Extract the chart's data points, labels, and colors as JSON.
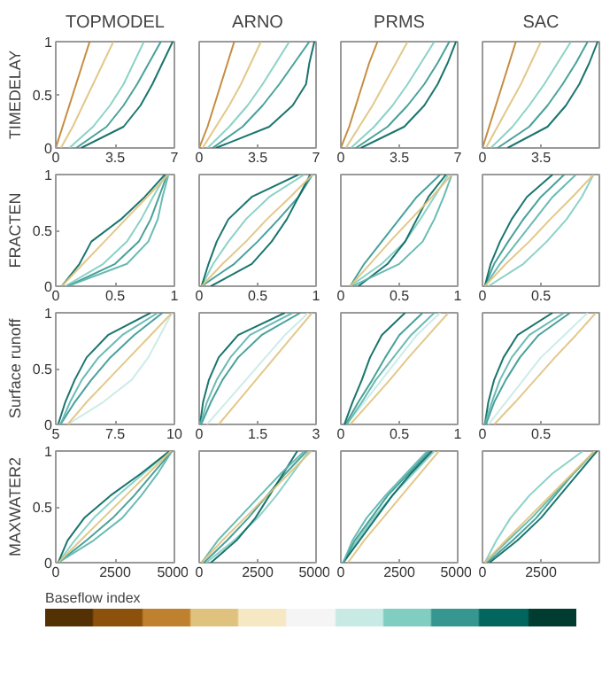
{
  "chart_data": [
    {
      "type": "line",
      "title": "TOPMODEL",
      "ylabel": "TIMEDELAY",
      "clabel": "Baseflow index",
      "xlim": [
        0,
        7
      ],
      "xticks": [
        0,
        3.5,
        7
      ],
      "ylim": [
        0,
        1
      ],
      "yticks": [
        0,
        0.5,
        1
      ],
      "series": [
        {
          "color": "#01665e",
          "x": [
            1.5,
            4.0,
            5.0,
            5.7,
            6.3,
            6.9
          ],
          "values": [
            0,
            0.2,
            0.4,
            0.6,
            0.8,
            1
          ]
        },
        {
          "color": "#35978f",
          "x": [
            1.2,
            3.0,
            4.0,
            4.8,
            5.5,
            6.2
          ],
          "values": [
            0,
            0.2,
            0.4,
            0.6,
            0.8,
            1
          ]
        },
        {
          "color": "#80cdc1",
          "x": [
            0.8,
            2.2,
            3.2,
            4.0,
            4.6,
            5.2
          ],
          "values": [
            0,
            0.2,
            0.4,
            0.6,
            0.8,
            1
          ]
        },
        {
          "color": "#dfc27d",
          "x": [
            0.3,
            1.0,
            1.6,
            2.2,
            2.8,
            3.4
          ],
          "values": [
            0,
            0.2,
            0.4,
            0.6,
            0.8,
            1
          ]
        },
        {
          "color": "#bf812d",
          "x": [
            0,
            0.4,
            0.8,
            1.2,
            1.6,
            2.0
          ],
          "values": [
            0,
            0.2,
            0.4,
            0.6,
            0.8,
            1
          ]
        }
      ]
    },
    {
      "type": "line",
      "title": "ARNO",
      "tick_labels": "x",
      "xlim": [
        0,
        7
      ],
      "xticks": [
        0,
        3.5,
        7
      ],
      "ylim": [
        0,
        1
      ],
      "yticks": [
        0,
        0.5,
        1
      ],
      "series": [
        {
          "color": "#01665e",
          "x": [
            1.0,
            4.2,
            5.6,
            6.4,
            6.6,
            6.9
          ],
          "values": [
            0,
            0.2,
            0.4,
            0.6,
            0.8,
            1
          ]
        },
        {
          "color": "#35978f",
          "x": [
            0.8,
            2.6,
            3.8,
            4.8,
            5.7,
            6.6
          ],
          "values": [
            0,
            0.2,
            0.4,
            0.6,
            0.8,
            1
          ]
        },
        {
          "color": "#80cdc1",
          "x": [
            0.5,
            1.8,
            2.9,
            3.8,
            4.6,
            5.4
          ],
          "values": [
            0,
            0.2,
            0.4,
            0.6,
            0.8,
            1
          ]
        },
        {
          "color": "#dfc27d",
          "x": [
            0.2,
            1.0,
            1.8,
            2.5,
            3.1,
            3.7
          ],
          "values": [
            0,
            0.2,
            0.4,
            0.6,
            0.8,
            1
          ]
        },
        {
          "color": "#bf812d",
          "x": [
            0,
            0.5,
            0.9,
            1.3,
            1.7,
            2.1
          ],
          "values": [
            0,
            0.2,
            0.4,
            0.6,
            0.8,
            1
          ]
        }
      ]
    },
    {
      "type": "line",
      "title": "PRMS",
      "tick_labels": "x",
      "xlim": [
        0,
        7
      ],
      "xticks": [
        0,
        3.5,
        7
      ],
      "ylim": [
        0,
        1
      ],
      "yticks": [
        0,
        0.5,
        1
      ],
      "series": [
        {
          "color": "#01665e",
          "x": [
            1.2,
            3.8,
            5.0,
            5.8,
            6.4,
            6.9
          ],
          "values": [
            0,
            0.2,
            0.4,
            0.6,
            0.8,
            1
          ]
        },
        {
          "color": "#35978f",
          "x": [
            0.9,
            2.8,
            4.0,
            5.0,
            5.8,
            6.5
          ],
          "values": [
            0,
            0.2,
            0.4,
            0.6,
            0.8,
            1
          ]
        },
        {
          "color": "#80cdc1",
          "x": [
            0.6,
            2.0,
            3.1,
            4.0,
            4.8,
            5.6
          ],
          "values": [
            0,
            0.2,
            0.4,
            0.6,
            0.8,
            1
          ]
        },
        {
          "color": "#dfc27d",
          "x": [
            0.3,
            1.1,
            1.9,
            2.6,
            3.3,
            4.0
          ],
          "values": [
            0,
            0.2,
            0.4,
            0.6,
            0.8,
            1
          ]
        },
        {
          "color": "#bf812d",
          "x": [
            0,
            0.5,
            0.9,
            1.3,
            1.7,
            2.2
          ],
          "values": [
            0,
            0.2,
            0.4,
            0.6,
            0.8,
            1
          ]
        }
      ]
    },
    {
      "type": "line",
      "title": "SAC",
      "tick_labels": "x",
      "xlim": [
        0,
        7
      ],
      "xticks": [
        0,
        3.5
      ],
      "ylim": [
        0,
        1
      ],
      "yticks": [
        0,
        0.5,
        1
      ],
      "series": [
        {
          "color": "#01665e",
          "x": [
            1.5,
            3.9,
            5.0,
            5.8,
            6.4,
            6.9
          ],
          "values": [
            0,
            0.2,
            0.4,
            0.6,
            0.8,
            1
          ]
        },
        {
          "color": "#35978f",
          "x": [
            0.9,
            2.8,
            3.9,
            4.8,
            5.6,
            6.3
          ],
          "values": [
            0,
            0.2,
            0.4,
            0.6,
            0.8,
            1
          ]
        },
        {
          "color": "#80cdc1",
          "x": [
            0.5,
            1.8,
            2.8,
            3.7,
            4.5,
            5.3
          ],
          "values": [
            0,
            0.2,
            0.4,
            0.6,
            0.8,
            1
          ]
        },
        {
          "color": "#dfc27d",
          "x": [
            0.2,
            0.9,
            1.6,
            2.3,
            2.9,
            3.5
          ],
          "values": [
            0,
            0.2,
            0.4,
            0.6,
            0.8,
            1
          ]
        },
        {
          "color": "#bf812d",
          "x": [
            0,
            0.4,
            0.8,
            1.2,
            1.6,
            2.0
          ],
          "values": [
            0,
            0.2,
            0.4,
            0.6,
            0.8,
            1
          ]
        }
      ]
    },
    {
      "type": "line",
      "ylabel": "FRACTEN",
      "xlim": [
        0,
        1
      ],
      "xticks": [
        0,
        0.5,
        1
      ],
      "ylim": [
        0,
        1
      ],
      "yticks": [
        0,
        0.5,
        1
      ],
      "series": [
        {
          "color": "#80cdc1",
          "x": [
            0.08,
            0.4,
            0.6,
            0.72,
            0.82,
            0.93
          ],
          "values": [
            0,
            0.2,
            0.4,
            0.6,
            0.8,
            1
          ]
        },
        {
          "color": "#35978f",
          "x": [
            0.1,
            0.5,
            0.7,
            0.8,
            0.87,
            0.94
          ],
          "values": [
            0,
            0.2,
            0.4,
            0.6,
            0.8,
            1
          ]
        },
        {
          "color": "#01665e",
          "x": [
            0.05,
            0.2,
            0.3,
            0.55,
            0.75,
            0.92
          ],
          "values": [
            0,
            0.2,
            0.4,
            0.6,
            0.8,
            1
          ]
        },
        {
          "color": "#5ab4ac",
          "x": [
            0.1,
            0.6,
            0.78,
            0.86,
            0.9,
            0.95
          ],
          "values": [
            0,
            0.2,
            0.4,
            0.6,
            0.8,
            1
          ]
        },
        {
          "color": "#dfc27d",
          "x": [
            0.05,
            0.23,
            0.41,
            0.59,
            0.77,
            0.95
          ],
          "values": [
            0,
            0.2,
            0.4,
            0.6,
            0.8,
            1
          ]
        }
      ]
    },
    {
      "type": "line",
      "tick_labels": "x",
      "xlim": [
        0,
        1
      ],
      "xticks": [
        0,
        0.5,
        1
      ],
      "ylim": [
        0,
        1
      ],
      "yticks": [
        0,
        0.5,
        1
      ],
      "series": [
        {
          "color": "#80cdc1",
          "x": [
            0.02,
            0.12,
            0.25,
            0.4,
            0.6,
            0.9
          ],
          "values": [
            0,
            0.2,
            0.4,
            0.6,
            0.8,
            1
          ]
        },
        {
          "color": "#35978f",
          "x": [
            0.02,
            0.3,
            0.5,
            0.68,
            0.85,
            0.97
          ],
          "values": [
            0,
            0.2,
            0.4,
            0.6,
            0.8,
            1
          ]
        },
        {
          "color": "#01665e",
          "x": [
            0.1,
            0.45,
            0.62,
            0.75,
            0.85,
            0.95
          ],
          "values": [
            0,
            0.2,
            0.4,
            0.6,
            0.8,
            1
          ]
        },
        {
          "color": "#01665e",
          "x": [
            0.02,
            0.08,
            0.15,
            0.25,
            0.45,
            0.85
          ],
          "values": [
            0,
            0.2,
            0.4,
            0.6,
            0.8,
            1
          ]
        },
        {
          "color": "#dfc27d",
          "x": [
            0.02,
            0.2,
            0.4,
            0.58,
            0.78,
            0.97
          ],
          "values": [
            0,
            0.2,
            0.4,
            0.6,
            0.8,
            1
          ]
        }
      ]
    },
    {
      "type": "line",
      "tick_labels": "x",
      "xlim": [
        0,
        1
      ],
      "xticks": [
        0,
        0.5,
        1
      ],
      "ylim": [
        0,
        1
      ],
      "yticks": [
        0,
        0.5,
        1
      ],
      "series": [
        {
          "color": "#80cdc1",
          "x": [
            0.08,
            0.35,
            0.55,
            0.68,
            0.8,
            0.92
          ],
          "values": [
            0,
            0.2,
            0.4,
            0.6,
            0.8,
            1
          ]
        },
        {
          "color": "#35978f",
          "x": [
            0.08,
            0.2,
            0.35,
            0.5,
            0.65,
            0.85
          ],
          "values": [
            0,
            0.2,
            0.4,
            0.6,
            0.8,
            1
          ]
        },
        {
          "color": "#01665e",
          "x": [
            0.15,
            0.4,
            0.55,
            0.65,
            0.75,
            0.9
          ],
          "values": [
            0,
            0.2,
            0.4,
            0.6,
            0.8,
            1
          ]
        },
        {
          "color": "#5ab4ac",
          "x": [
            0.1,
            0.5,
            0.7,
            0.8,
            0.88,
            0.95
          ],
          "values": [
            0,
            0.2,
            0.4,
            0.6,
            0.8,
            1
          ]
        },
        {
          "color": "#dfc27d",
          "x": [
            0.08,
            0.25,
            0.42,
            0.6,
            0.78,
            0.95
          ],
          "values": [
            0,
            0.2,
            0.4,
            0.6,
            0.8,
            1
          ]
        }
      ]
    },
    {
      "type": "line",
      "tick_labels": "x",
      "xlim": [
        0,
        1
      ],
      "xticks": [
        0,
        0.5
      ],
      "ylim": [
        0,
        1
      ],
      "yticks": [
        0,
        0.5,
        1
      ],
      "series": [
        {
          "color": "#80cdc1",
          "x": [
            0.05,
            0.35,
            0.55,
            0.72,
            0.85,
            0.95
          ],
          "values": [
            0,
            0.2,
            0.4,
            0.6,
            0.8,
            1
          ]
        },
        {
          "color": "#35978f",
          "x": [
            0.02,
            0.1,
            0.22,
            0.35,
            0.5,
            0.7
          ],
          "values": [
            0,
            0.2,
            0.4,
            0.6,
            0.8,
            1
          ]
        },
        {
          "color": "#01665e",
          "x": [
            0.02,
            0.07,
            0.15,
            0.25,
            0.38,
            0.6
          ],
          "values": [
            0,
            0.2,
            0.4,
            0.6,
            0.8,
            1
          ]
        },
        {
          "color": "#5ab4ac",
          "x": [
            0.02,
            0.15,
            0.3,
            0.45,
            0.6,
            0.8
          ],
          "values": [
            0,
            0.2,
            0.4,
            0.6,
            0.8,
            1
          ]
        },
        {
          "color": "#dfc27d",
          "x": [
            0.02,
            0.2,
            0.4,
            0.58,
            0.77,
            0.95
          ],
          "values": [
            0,
            0.2,
            0.4,
            0.6,
            0.8,
            1
          ]
        }
      ]
    },
    {
      "type": "line",
      "ylabel": "Surface runoff",
      "xlim": [
        5,
        10
      ],
      "xticks": [
        5,
        7.5,
        10
      ],
      "ylim": [
        0,
        1
      ],
      "yticks": [
        0,
        0.5,
        1
      ],
      "series": [
        {
          "color": "#c7eae5",
          "x": [
            5.5,
            7.0,
            8.2,
            8.9,
            9.4,
            9.9
          ],
          "values": [
            0,
            0.2,
            0.4,
            0.6,
            0.8,
            1
          ]
        },
        {
          "color": "#35978f",
          "x": [
            5.2,
            5.8,
            6.5,
            7.3,
            8.3,
            9.5
          ],
          "values": [
            0,
            0.2,
            0.4,
            0.6,
            0.8,
            1
          ]
        },
        {
          "color": "#01665e",
          "x": [
            5.1,
            5.4,
            5.8,
            6.3,
            7.2,
            9.0
          ],
          "values": [
            0,
            0.2,
            0.4,
            0.6,
            0.8,
            1
          ]
        },
        {
          "color": "#5ab4ac",
          "x": [
            5.2,
            5.6,
            6.1,
            6.8,
            7.8,
            9.3
          ],
          "values": [
            0,
            0.2,
            0.4,
            0.6,
            0.8,
            1
          ]
        },
        {
          "color": "#dfc27d",
          "x": [
            5.5,
            6.3,
            7.2,
            8.1,
            9.0,
            9.9
          ],
          "values": [
            0,
            0.2,
            0.4,
            0.6,
            0.8,
            1
          ]
        }
      ]
    },
    {
      "type": "line",
      "tick_labels": "x",
      "xlim": [
        0,
        3
      ],
      "xticks": [
        0,
        1.5,
        3
      ],
      "ylim": [
        0,
        1
      ],
      "yticks": [
        0,
        0.5,
        1
      ],
      "series": [
        {
          "color": "#c7eae5",
          "x": [
            0.2,
            0.7,
            1.2,
            1.7,
            2.2,
            2.8
          ],
          "values": [
            0,
            0.2,
            0.4,
            0.6,
            0.8,
            1
          ]
        },
        {
          "color": "#35978f",
          "x": [
            0.05,
            0.3,
            0.6,
            1.0,
            1.6,
            2.6
          ],
          "values": [
            0,
            0.2,
            0.4,
            0.6,
            0.8,
            1
          ]
        },
        {
          "color": "#01665e",
          "x": [
            0.02,
            0.1,
            0.25,
            0.5,
            1.0,
            2.2
          ],
          "values": [
            0,
            0.2,
            0.4,
            0.6,
            0.8,
            1
          ]
        },
        {
          "color": "#5ab4ac",
          "x": [
            0.03,
            0.2,
            0.45,
            0.8,
            1.3,
            2.4
          ],
          "values": [
            0,
            0.2,
            0.4,
            0.6,
            0.8,
            1
          ]
        },
        {
          "color": "#dfc27d",
          "x": [
            0.5,
            0.98,
            1.46,
            1.94,
            2.42,
            2.9
          ],
          "values": [
            0,
            0.2,
            0.4,
            0.6,
            0.8,
            1
          ]
        }
      ]
    },
    {
      "type": "line",
      "tick_labels": "x",
      "xlim": [
        0,
        1
      ],
      "xticks": [
        0,
        0.5,
        1
      ],
      "ylim": [
        0,
        1
      ],
      "yticks": [
        0,
        0.5,
        1
      ],
      "series": [
        {
          "color": "#c7eae5",
          "x": [
            0.05,
            0.2,
            0.35,
            0.5,
            0.65,
            0.85
          ],
          "values": [
            0,
            0.2,
            0.4,
            0.6,
            0.8,
            1
          ]
        },
        {
          "color": "#35978f",
          "x": [
            0.04,
            0.15,
            0.27,
            0.38,
            0.5,
            0.7
          ],
          "values": [
            0,
            0.2,
            0.4,
            0.6,
            0.8,
            1
          ]
        },
        {
          "color": "#01665e",
          "x": [
            0.03,
            0.1,
            0.18,
            0.25,
            0.35,
            0.55
          ],
          "values": [
            0,
            0.2,
            0.4,
            0.6,
            0.8,
            1
          ]
        },
        {
          "color": "#5ab4ac",
          "x": [
            0.05,
            0.18,
            0.3,
            0.45,
            0.6,
            0.8
          ],
          "values": [
            0,
            0.2,
            0.4,
            0.6,
            0.8,
            1
          ]
        },
        {
          "color": "#dfc27d",
          "x": [
            0.08,
            0.25,
            0.42,
            0.58,
            0.75,
            0.92
          ],
          "values": [
            0,
            0.2,
            0.4,
            0.6,
            0.8,
            1
          ]
        }
      ]
    },
    {
      "type": "line",
      "tick_labels": "x",
      "xlim": [
        0,
        1
      ],
      "xticks": [
        0,
        0.5
      ],
      "ylim": [
        0,
        1
      ],
      "yticks": [
        0,
        0.5,
        1
      ],
      "series": [
        {
          "color": "#c7eae5",
          "x": [
            0.05,
            0.2,
            0.35,
            0.5,
            0.7,
            0.9
          ],
          "values": [
            0,
            0.2,
            0.4,
            0.6,
            0.8,
            1
          ]
        },
        {
          "color": "#35978f",
          "x": [
            0.03,
            0.1,
            0.2,
            0.32,
            0.48,
            0.75
          ],
          "values": [
            0,
            0.2,
            0.4,
            0.6,
            0.8,
            1
          ]
        },
        {
          "color": "#01665e",
          "x": [
            0.02,
            0.05,
            0.1,
            0.18,
            0.3,
            0.6
          ],
          "values": [
            0,
            0.2,
            0.4,
            0.6,
            0.8,
            1
          ]
        },
        {
          "color": "#5ab4ac",
          "x": [
            0.02,
            0.08,
            0.15,
            0.25,
            0.4,
            0.7
          ],
          "values": [
            0,
            0.2,
            0.4,
            0.6,
            0.8,
            1
          ]
        },
        {
          "color": "#dfc27d",
          "x": [
            0.1,
            0.28,
            0.45,
            0.62,
            0.8,
            0.97
          ],
          "values": [
            0,
            0.2,
            0.4,
            0.6,
            0.8,
            1
          ]
        }
      ]
    },
    {
      "type": "line",
      "ylabel": "MAXWATER2",
      "xlim": [
        0,
        5000
      ],
      "xticks": [
        0,
        2500,
        5000
      ],
      "ylim": [
        0,
        1
      ],
      "yticks": [
        0,
        0.5,
        1
      ],
      "series": [
        {
          "color": "#80cdc1",
          "x": [
            100,
            800,
            1600,
            2600,
            3700,
            4800
          ],
          "values": [
            0,
            0.2,
            0.4,
            0.6,
            0.8,
            1
          ]
        },
        {
          "color": "#35978f",
          "x": [
            100,
            1300,
            2400,
            3300,
            4100,
            4900
          ],
          "values": [
            0,
            0.2,
            0.4,
            0.6,
            0.8,
            1
          ]
        },
        {
          "color": "#01665e",
          "x": [
            100,
            500,
            1200,
            2300,
            3600,
            4800
          ],
          "values": [
            0,
            0.2,
            0.4,
            0.6,
            0.8,
            1
          ]
        },
        {
          "color": "#5ab4ac",
          "x": [
            100,
            1600,
            2800,
            3600,
            4300,
            4900
          ],
          "values": [
            0,
            0.2,
            0.4,
            0.6,
            0.8,
            1
          ]
        },
        {
          "color": "#dfc27d",
          "x": [
            100,
            1050,
            2000,
            2950,
            3900,
            4850
          ],
          "values": [
            0,
            0.2,
            0.4,
            0.6,
            0.8,
            1
          ]
        }
      ]
    },
    {
      "type": "line",
      "tick_labels": "x",
      "xlim": [
        0,
        5000
      ],
      "xticks": [
        0,
        2500,
        5000
      ],
      "ylim": [
        0,
        1
      ],
      "yticks": [
        0,
        0.5,
        1
      ],
      "series": [
        {
          "color": "#80cdc1",
          "x": [
            300,
            1500,
            2500,
            3300,
            4000,
            4700
          ],
          "values": [
            0,
            0.2,
            0.4,
            0.6,
            0.8,
            1
          ]
        },
        {
          "color": "#35978f",
          "x": [
            200,
            1200,
            2100,
            2900,
            3700,
            4600
          ],
          "values": [
            0,
            0.2,
            0.4,
            0.6,
            0.8,
            1
          ]
        },
        {
          "color": "#01665e",
          "x": [
            500,
            1600,
            2400,
            3000,
            3600,
            4200
          ],
          "values": [
            0,
            0.2,
            0.4,
            0.6,
            0.8,
            1
          ]
        },
        {
          "color": "#5ab4ac",
          "x": [
            100,
            800,
            1700,
            2600,
            3500,
            4500
          ],
          "values": [
            0,
            0.2,
            0.4,
            0.6,
            0.8,
            1
          ]
        },
        {
          "color": "#dfc27d",
          "x": [
            100,
            1000,
            1950,
            2900,
            3850,
            4800
          ],
          "values": [
            0,
            0.2,
            0.4,
            0.6,
            0.8,
            1
          ]
        }
      ]
    },
    {
      "type": "line",
      "tick_labels": "x",
      "xlim": [
        0,
        5000
      ],
      "xticks": [
        0,
        2500,
        5000
      ],
      "ylim": [
        0,
        1
      ],
      "yticks": [
        0,
        0.5,
        1
      ],
      "series": [
        {
          "color": "#80cdc1",
          "x": [
            100,
            700,
            1400,
            2200,
            3100,
            4000
          ],
          "values": [
            0,
            0.2,
            0.4,
            0.6,
            0.8,
            1
          ]
        },
        {
          "color": "#35978f",
          "x": [
            100,
            600,
            1300,
            2000,
            2900,
            3800
          ],
          "values": [
            0,
            0.2,
            0.4,
            0.6,
            0.8,
            1
          ]
        },
        {
          "color": "#01665e",
          "x": [
            100,
            800,
            1500,
            2200,
            3000,
            3900
          ],
          "values": [
            0,
            0.2,
            0.4,
            0.6,
            0.8,
            1
          ]
        },
        {
          "color": "#5ab4ac",
          "x": [
            100,
            500,
            1100,
            1900,
            2800,
            3700
          ],
          "values": [
            0,
            0.2,
            0.4,
            0.6,
            0.8,
            1
          ]
        },
        {
          "color": "#dfc27d",
          "x": [
            300,
            1000,
            1800,
            2600,
            3400,
            4200
          ],
          "values": [
            0,
            0.2,
            0.4,
            0.6,
            0.8,
            1
          ]
        }
      ]
    },
    {
      "type": "line",
      "tick_labels": "x",
      "xlim": [
        0,
        5000
      ],
      "xticks": [
        0,
        2500
      ],
      "ylim": [
        0,
        1
      ],
      "yticks": [
        0,
        0.5,
        1
      ],
      "series": [
        {
          "color": "#80cdc1",
          "x": [
            100,
            600,
            1200,
            2000,
            3000,
            4300
          ],
          "values": [
            0,
            0.2,
            0.4,
            0.6,
            0.8,
            1
          ]
        },
        {
          "color": "#35978f",
          "x": [
            200,
            1300,
            2300,
            3100,
            3900,
            4800
          ],
          "values": [
            0,
            0.2,
            0.4,
            0.6,
            0.8,
            1
          ]
        },
        {
          "color": "#01665e",
          "x": [
            300,
            1500,
            2500,
            3300,
            4100,
            4900
          ],
          "values": [
            0,
            0.2,
            0.4,
            0.6,
            0.8,
            1
          ]
        },
        {
          "color": "#5ab4ac",
          "x": [
            100,
            1100,
            2100,
            3000,
            3900,
            4800
          ],
          "values": [
            0,
            0.2,
            0.4,
            0.6,
            0.8,
            1
          ]
        },
        {
          "color": "#dfc27d",
          "x": [
            100,
            1000,
            1950,
            2900,
            3850,
            4800
          ],
          "values": [
            0,
            0.2,
            0.4,
            0.6,
            0.8,
            1
          ]
        }
      ]
    }
  ]
}
